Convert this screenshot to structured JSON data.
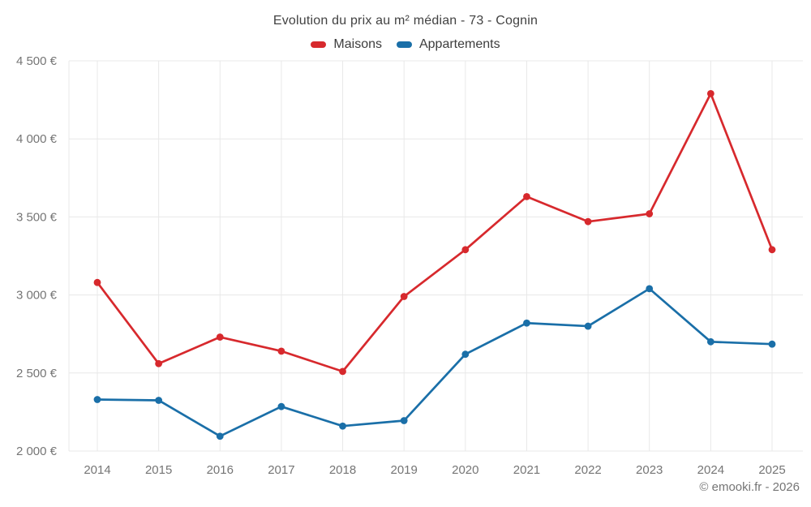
{
  "watermark": "© emooki.fr - 2026",
  "colors": {
    "background": "#ffffff",
    "grid": "#e8e8e8",
    "axis_text": "#757575",
    "title_text": "#424242",
    "legend_text": "#3d3d3d",
    "watermark_text": "#757575",
    "maisons": "#d7292d",
    "appartements": "#1a6fa8"
  },
  "chart_data": {
    "type": "line",
    "title": "Evolution du prix au m² médian - 73 - Cognin",
    "xlabel": "",
    "ylabel": "",
    "categories": [
      "2014",
      "2015",
      "2016",
      "2017",
      "2018",
      "2019",
      "2020",
      "2021",
      "2022",
      "2023",
      "2024",
      "2025"
    ],
    "series": [
      {
        "name": "Maisons",
        "color": "#d7292d",
        "values": [
          3080,
          2560,
          2730,
          2640,
          2510,
          2990,
          3290,
          3630,
          3470,
          3520,
          4290,
          3290
        ]
      },
      {
        "name": "Appartements",
        "color": "#1a6fa8",
        "values": [
          2330,
          2325,
          2095,
          2285,
          2160,
          2195,
          2620,
          2820,
          2800,
          3040,
          2700,
          2685
        ]
      }
    ],
    "ylim": [
      2000,
      4500
    ],
    "ytick_step": 500,
    "ytick_labels": [
      "2 000 €",
      "2 500 €",
      "3 000 €",
      "3 500 €",
      "4 000 €",
      "4 500 €"
    ],
    "grid": true,
    "legend_position": "top",
    "marker": "circle"
  }
}
